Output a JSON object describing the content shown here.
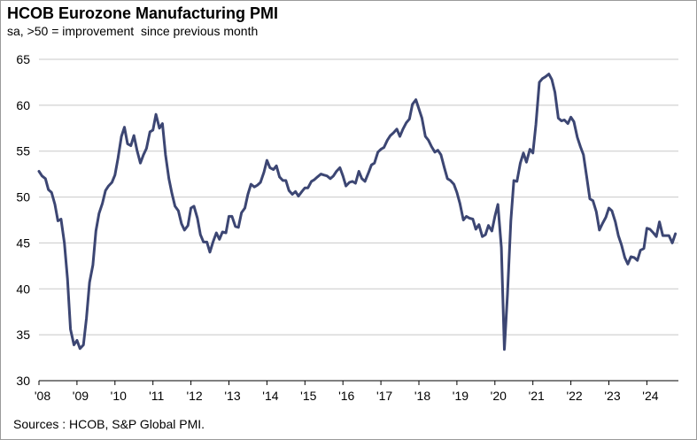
{
  "chart_data": {
    "type": "line",
    "title": "HCOB Eurozone Manufacturing PMI",
    "subtitle": "sa, >50 = improvement  since previous month",
    "source": "Sources : HCOB, S&P Global PMI.",
    "ylim": [
      30,
      65
    ],
    "yticks": [
      30,
      35,
      40,
      45,
      50,
      55,
      60,
      65
    ],
    "xlim": [
      2008.0,
      2024.83
    ],
    "xticks": [
      {
        "value": 2008,
        "label": "'08"
      },
      {
        "value": 2009,
        "label": "'09"
      },
      {
        "value": 2010,
        "label": "'10"
      },
      {
        "value": 2011,
        "label": "'11"
      },
      {
        "value": 2012,
        "label": "'12"
      },
      {
        "value": 2013,
        "label": "'13"
      },
      {
        "value": 2014,
        "label": "'14"
      },
      {
        "value": 2015,
        "label": "'15"
      },
      {
        "value": 2016,
        "label": "'16"
      },
      {
        "value": 2017,
        "label": "'17"
      },
      {
        "value": 2018,
        "label": "'18"
      },
      {
        "value": 2019,
        "label": "'19"
      },
      {
        "value": 2020,
        "label": "'20"
      },
      {
        "value": 2021,
        "label": "'21"
      },
      {
        "value": 2022,
        "label": "'22"
      },
      {
        "value": 2023,
        "label": "'23"
      },
      {
        "value": 2024,
        "label": "'24"
      }
    ],
    "series": [
      {
        "name": "HCOB Eurozone Manufacturing PMI",
        "color": "#3c4673",
        "x": [
          2008.0,
          2008.08,
          2008.17,
          2008.25,
          2008.33,
          2008.42,
          2008.5,
          2008.58,
          2008.67,
          2008.75,
          2008.83,
          2008.92,
          2009.0,
          2009.08,
          2009.17,
          2009.25,
          2009.33,
          2009.42,
          2009.5,
          2009.58,
          2009.67,
          2009.75,
          2009.83,
          2009.92,
          2010.0,
          2010.08,
          2010.17,
          2010.25,
          2010.33,
          2010.42,
          2010.5,
          2010.58,
          2010.67,
          2010.75,
          2010.83,
          2010.92,
          2011.0,
          2011.08,
          2011.17,
          2011.25,
          2011.33,
          2011.42,
          2011.5,
          2011.58,
          2011.67,
          2011.75,
          2011.83,
          2011.92,
          2012.0,
          2012.08,
          2012.17,
          2012.25,
          2012.33,
          2012.42,
          2012.5,
          2012.58,
          2012.67,
          2012.75,
          2012.83,
          2012.92,
          2013.0,
          2013.08,
          2013.17,
          2013.25,
          2013.33,
          2013.42,
          2013.5,
          2013.58,
          2013.67,
          2013.75,
          2013.83,
          2013.92,
          2014.0,
          2014.08,
          2014.17,
          2014.25,
          2014.33,
          2014.42,
          2014.5,
          2014.58,
          2014.67,
          2014.75,
          2014.83,
          2014.92,
          2015.0,
          2015.08,
          2015.17,
          2015.25,
          2015.33,
          2015.42,
          2015.5,
          2015.58,
          2015.67,
          2015.75,
          2015.83,
          2015.92,
          2016.0,
          2016.08,
          2016.17,
          2016.25,
          2016.33,
          2016.42,
          2016.5,
          2016.58,
          2016.67,
          2016.75,
          2016.83,
          2016.92,
          2017.0,
          2017.08,
          2017.17,
          2017.25,
          2017.33,
          2017.42,
          2017.5,
          2017.58,
          2017.67,
          2017.75,
          2017.83,
          2017.92,
          2018.0,
          2018.08,
          2018.17,
          2018.25,
          2018.33,
          2018.42,
          2018.5,
          2018.58,
          2018.67,
          2018.75,
          2018.83,
          2018.92,
          2019.0,
          2019.08,
          2019.17,
          2019.25,
          2019.33,
          2019.42,
          2019.5,
          2019.58,
          2019.67,
          2019.75,
          2019.83,
          2019.92,
          2020.0,
          2020.08,
          2020.17,
          2020.25,
          2020.33,
          2020.42,
          2020.5,
          2020.58,
          2020.67,
          2020.75,
          2020.83,
          2020.92,
          2021.0,
          2021.08,
          2021.17,
          2021.25,
          2021.33,
          2021.42,
          2021.5,
          2021.58,
          2021.67,
          2021.75,
          2021.83,
          2021.92,
          2022.0,
          2022.08,
          2022.17,
          2022.25,
          2022.33,
          2022.42,
          2022.5,
          2022.58,
          2022.67,
          2022.75,
          2022.83,
          2022.92,
          2023.0,
          2023.08,
          2023.17,
          2023.25,
          2023.33,
          2023.42,
          2023.5,
          2023.58,
          2023.67,
          2023.75,
          2023.83,
          2023.92,
          2024.0,
          2024.08,
          2024.17,
          2024.25,
          2024.33,
          2024.42,
          2024.5,
          2024.58,
          2024.67,
          2024.75
        ],
        "values": [
          52.8,
          52.3,
          52.0,
          50.8,
          50.5,
          49.2,
          47.4,
          47.6,
          45.0,
          41.1,
          35.6,
          33.9,
          34.4,
          33.5,
          33.9,
          36.8,
          40.7,
          42.6,
          46.3,
          48.2,
          49.3,
          50.7,
          51.2,
          51.6,
          52.4,
          54.2,
          56.6,
          57.6,
          55.8,
          55.6,
          56.7,
          55.1,
          53.7,
          54.6,
          55.3,
          57.1,
          57.3,
          59.0,
          57.5,
          58.0,
          54.6,
          52.0,
          50.4,
          49.0,
          48.5,
          47.1,
          46.4,
          46.9,
          48.8,
          49.0,
          47.7,
          45.9,
          45.1,
          45.1,
          44.0,
          45.1,
          46.1,
          45.4,
          46.2,
          46.1,
          47.9,
          47.9,
          46.8,
          46.7,
          48.3,
          48.8,
          50.3,
          51.4,
          51.1,
          51.3,
          51.6,
          52.7,
          54.0,
          53.2,
          53.0,
          53.4,
          52.2,
          51.8,
          51.8,
          50.7,
          50.3,
          50.6,
          50.1,
          50.6,
          51.0,
          51.0,
          51.7,
          51.9,
          52.2,
          52.5,
          52.4,
          52.3,
          52.0,
          52.3,
          52.8,
          53.2,
          52.3,
          51.2,
          51.6,
          51.7,
          51.5,
          52.8,
          52.0,
          51.7,
          52.6,
          53.5,
          53.7,
          54.9,
          55.2,
          55.4,
          56.2,
          56.7,
          57.0,
          57.4,
          56.6,
          57.4,
          58.1,
          58.5,
          60.1,
          60.6,
          59.6,
          58.6,
          56.6,
          56.2,
          55.5,
          54.9,
          55.1,
          54.6,
          53.2,
          52.0,
          51.8,
          51.4,
          50.5,
          49.3,
          47.5,
          47.9,
          47.7,
          47.6,
          46.5,
          47.0,
          45.7,
          45.9,
          46.9,
          46.3,
          47.9,
          49.2,
          44.5,
          33.4,
          39.4,
          47.4,
          51.8,
          51.7,
          53.7,
          54.8,
          53.8,
          55.2,
          54.8,
          57.9,
          62.5,
          62.9,
          63.1,
          63.4,
          62.8,
          61.4,
          58.6,
          58.3,
          58.4,
          58.0,
          58.7,
          58.2,
          56.5,
          55.5,
          54.6,
          52.1,
          49.8,
          49.6,
          48.4,
          46.4,
          47.1,
          47.8,
          48.8,
          48.5,
          47.3,
          45.8,
          44.8,
          43.4,
          42.7,
          43.5,
          43.4,
          43.1,
          44.2,
          44.4,
          46.6,
          46.5,
          46.1,
          45.7,
          47.3,
          45.8,
          45.8,
          45.8,
          45.0,
          46.0
        ]
      }
    ]
  }
}
